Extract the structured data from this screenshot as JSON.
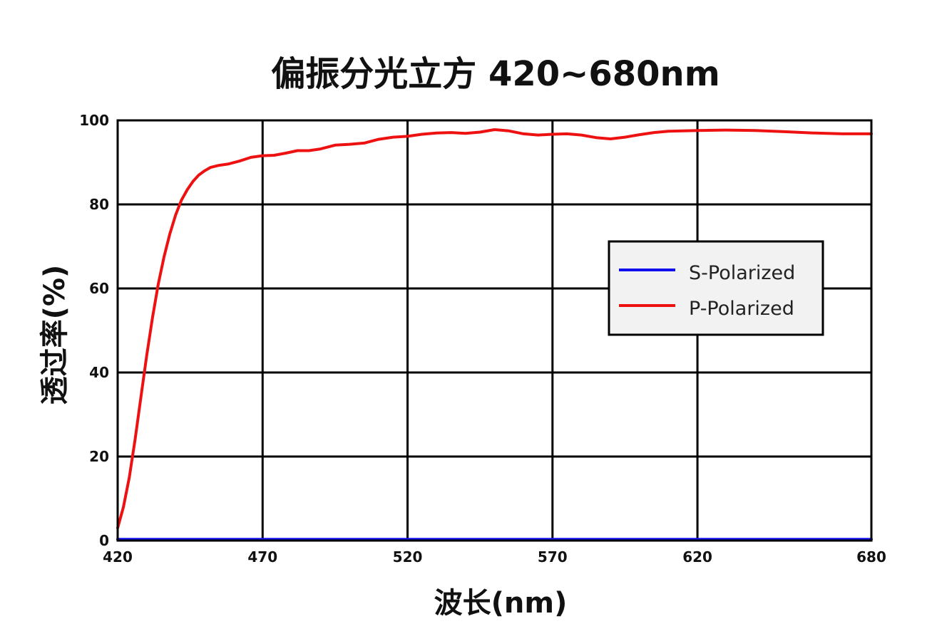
{
  "chart_data": {
    "type": "line",
    "title": "偏振分光立方 420~680nm",
    "xlabel": "波长(nm)",
    "ylabel": "透过率(%)",
    "xlim": [
      420,
      680
    ],
    "ylim": [
      0,
      100
    ],
    "xticks": [
      "420",
      "470",
      "520",
      "570",
      "620",
      "680"
    ],
    "yticks": [
      "0",
      "20",
      "40",
      "60",
      "80",
      "100"
    ],
    "grid": true,
    "legend_position": "right",
    "series": [
      {
        "name": "S-Polarized",
        "color": "#1010ee",
        "x": [
          420,
          680
        ],
        "y": [
          0.3,
          0.3
        ]
      },
      {
        "name": "P-Polarized",
        "color": "#ee1111",
        "x": [
          420,
          422,
          424,
          426,
          428,
          430,
          432,
          434,
          436,
          438,
          440,
          442,
          444,
          446,
          448,
          450,
          452,
          455,
          458,
          462,
          466,
          470,
          474,
          478,
          482,
          486,
          490,
          495,
          500,
          505,
          510,
          515,
          520,
          525,
          530,
          535,
          540,
          545,
          550,
          555,
          560,
          565,
          570,
          575,
          580,
          585,
          590,
          595,
          600,
          605,
          610,
          615,
          620,
          630,
          640,
          650,
          660,
          670,
          680
        ],
        "y": [
          3,
          8,
          15,
          24,
          34,
          44,
          53,
          61,
          67.5,
          73,
          77.5,
          81,
          83.5,
          85.5,
          87,
          88,
          88.8,
          89.3,
          89.6,
          90.3,
          91.2,
          91.6,
          91.7,
          92.2,
          92.8,
          92.8,
          93.2,
          94.1,
          94.3,
          94.6,
          95.5,
          96,
          96.2,
          96.7,
          97,
          97.1,
          96.9,
          97.2,
          97.8,
          97.5,
          96.8,
          96.5,
          96.7,
          96.8,
          96.5,
          95.9,
          95.6,
          96,
          96.6,
          97.1,
          97.4,
          97.5,
          97.6,
          97.7,
          97.6,
          97.3,
          97,
          96.8,
          96.8
        ]
      }
    ]
  }
}
